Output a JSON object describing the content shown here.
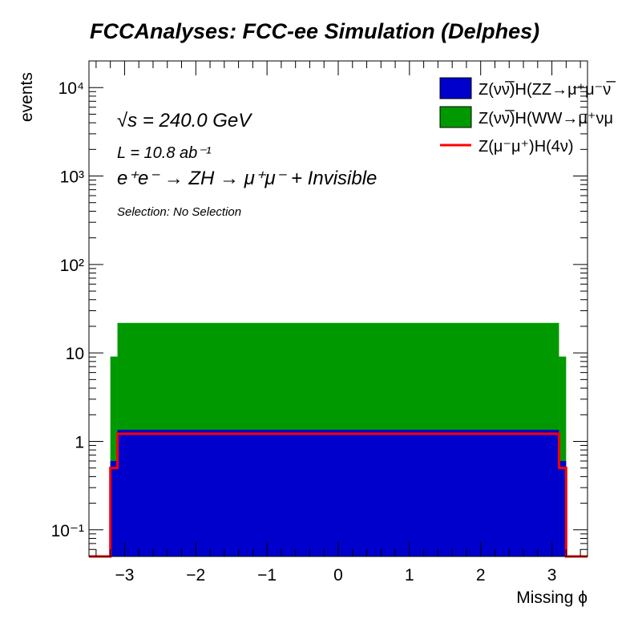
{
  "title": "FCCAnalyses: FCC-ee Simulation (Delphes)",
  "ylabel": "events",
  "xlabel": "Missing ϕ",
  "annotations": {
    "sqrt_s": "√s = 240.0 GeV",
    "lumi": "L = 10.8 ab⁻¹",
    "process": "e⁺e⁻ → ZH → μ⁺μ⁻ + Invisible",
    "selection": "Selection: No Selection"
  },
  "legend": [
    {
      "label": "Z(νν̅)H(ZZ→μ⁺μ⁻ν̅",
      "kind": "fill",
      "color": "#0000cc"
    },
    {
      "label": "Z(νν̅)H(WW→μ⁺νμ",
      "kind": "fill",
      "color": "#009900"
    },
    {
      "label": "Z(μ⁻μ⁺)H(4ν)",
      "kind": "line",
      "color": "#ff0000"
    }
  ],
  "chart_data": {
    "type": "area",
    "title": "FCCAnalyses: FCC-ee Simulation (Delphes)",
    "xlabel": "Missing ϕ",
    "ylabel": "events",
    "yscale": "log",
    "xlim": [
      -3.5,
      3.5
    ],
    "ylim": [
      0.05,
      20000
    ],
    "x_ticks": [
      -3,
      -2,
      -1,
      0,
      1,
      2,
      3
    ],
    "x_tick_labels": [
      "−3",
      "−2",
      "−1",
      "0",
      "1",
      "2",
      "3"
    ],
    "y_ticks": [
      0.1,
      1,
      10,
      100,
      1000,
      10000
    ],
    "y_tick_labels": [
      "10⁻¹",
      "1",
      "10",
      "10²",
      "10³",
      "10⁴"
    ],
    "grid": false,
    "legend_position": "top-right",
    "bin_edges": [
      -3.5,
      -3.2,
      -3.1,
      3.1,
      3.2,
      3.5
    ],
    "series": [
      {
        "name": "Z(νν̅)H(ZZ→μ⁺μ⁻ν̅",
        "style": "stacked-fill",
        "color": "#0000cc",
        "values": [
          0,
          0.6,
          1.35,
          0.6,
          0
        ]
      },
      {
        "name": "Z(νν̅)H(WW→μ⁺νμ",
        "style": "stacked-fill",
        "color": "#009900",
        "values": [
          0,
          8.5,
          20.5,
          8.5,
          0
        ]
      },
      {
        "name": "Z(μ⁻μ⁺)H(4ν)",
        "style": "line",
        "color": "#ff0000",
        "values": [
          0,
          0.5,
          1.22,
          0.5,
          0
        ]
      }
    ]
  }
}
